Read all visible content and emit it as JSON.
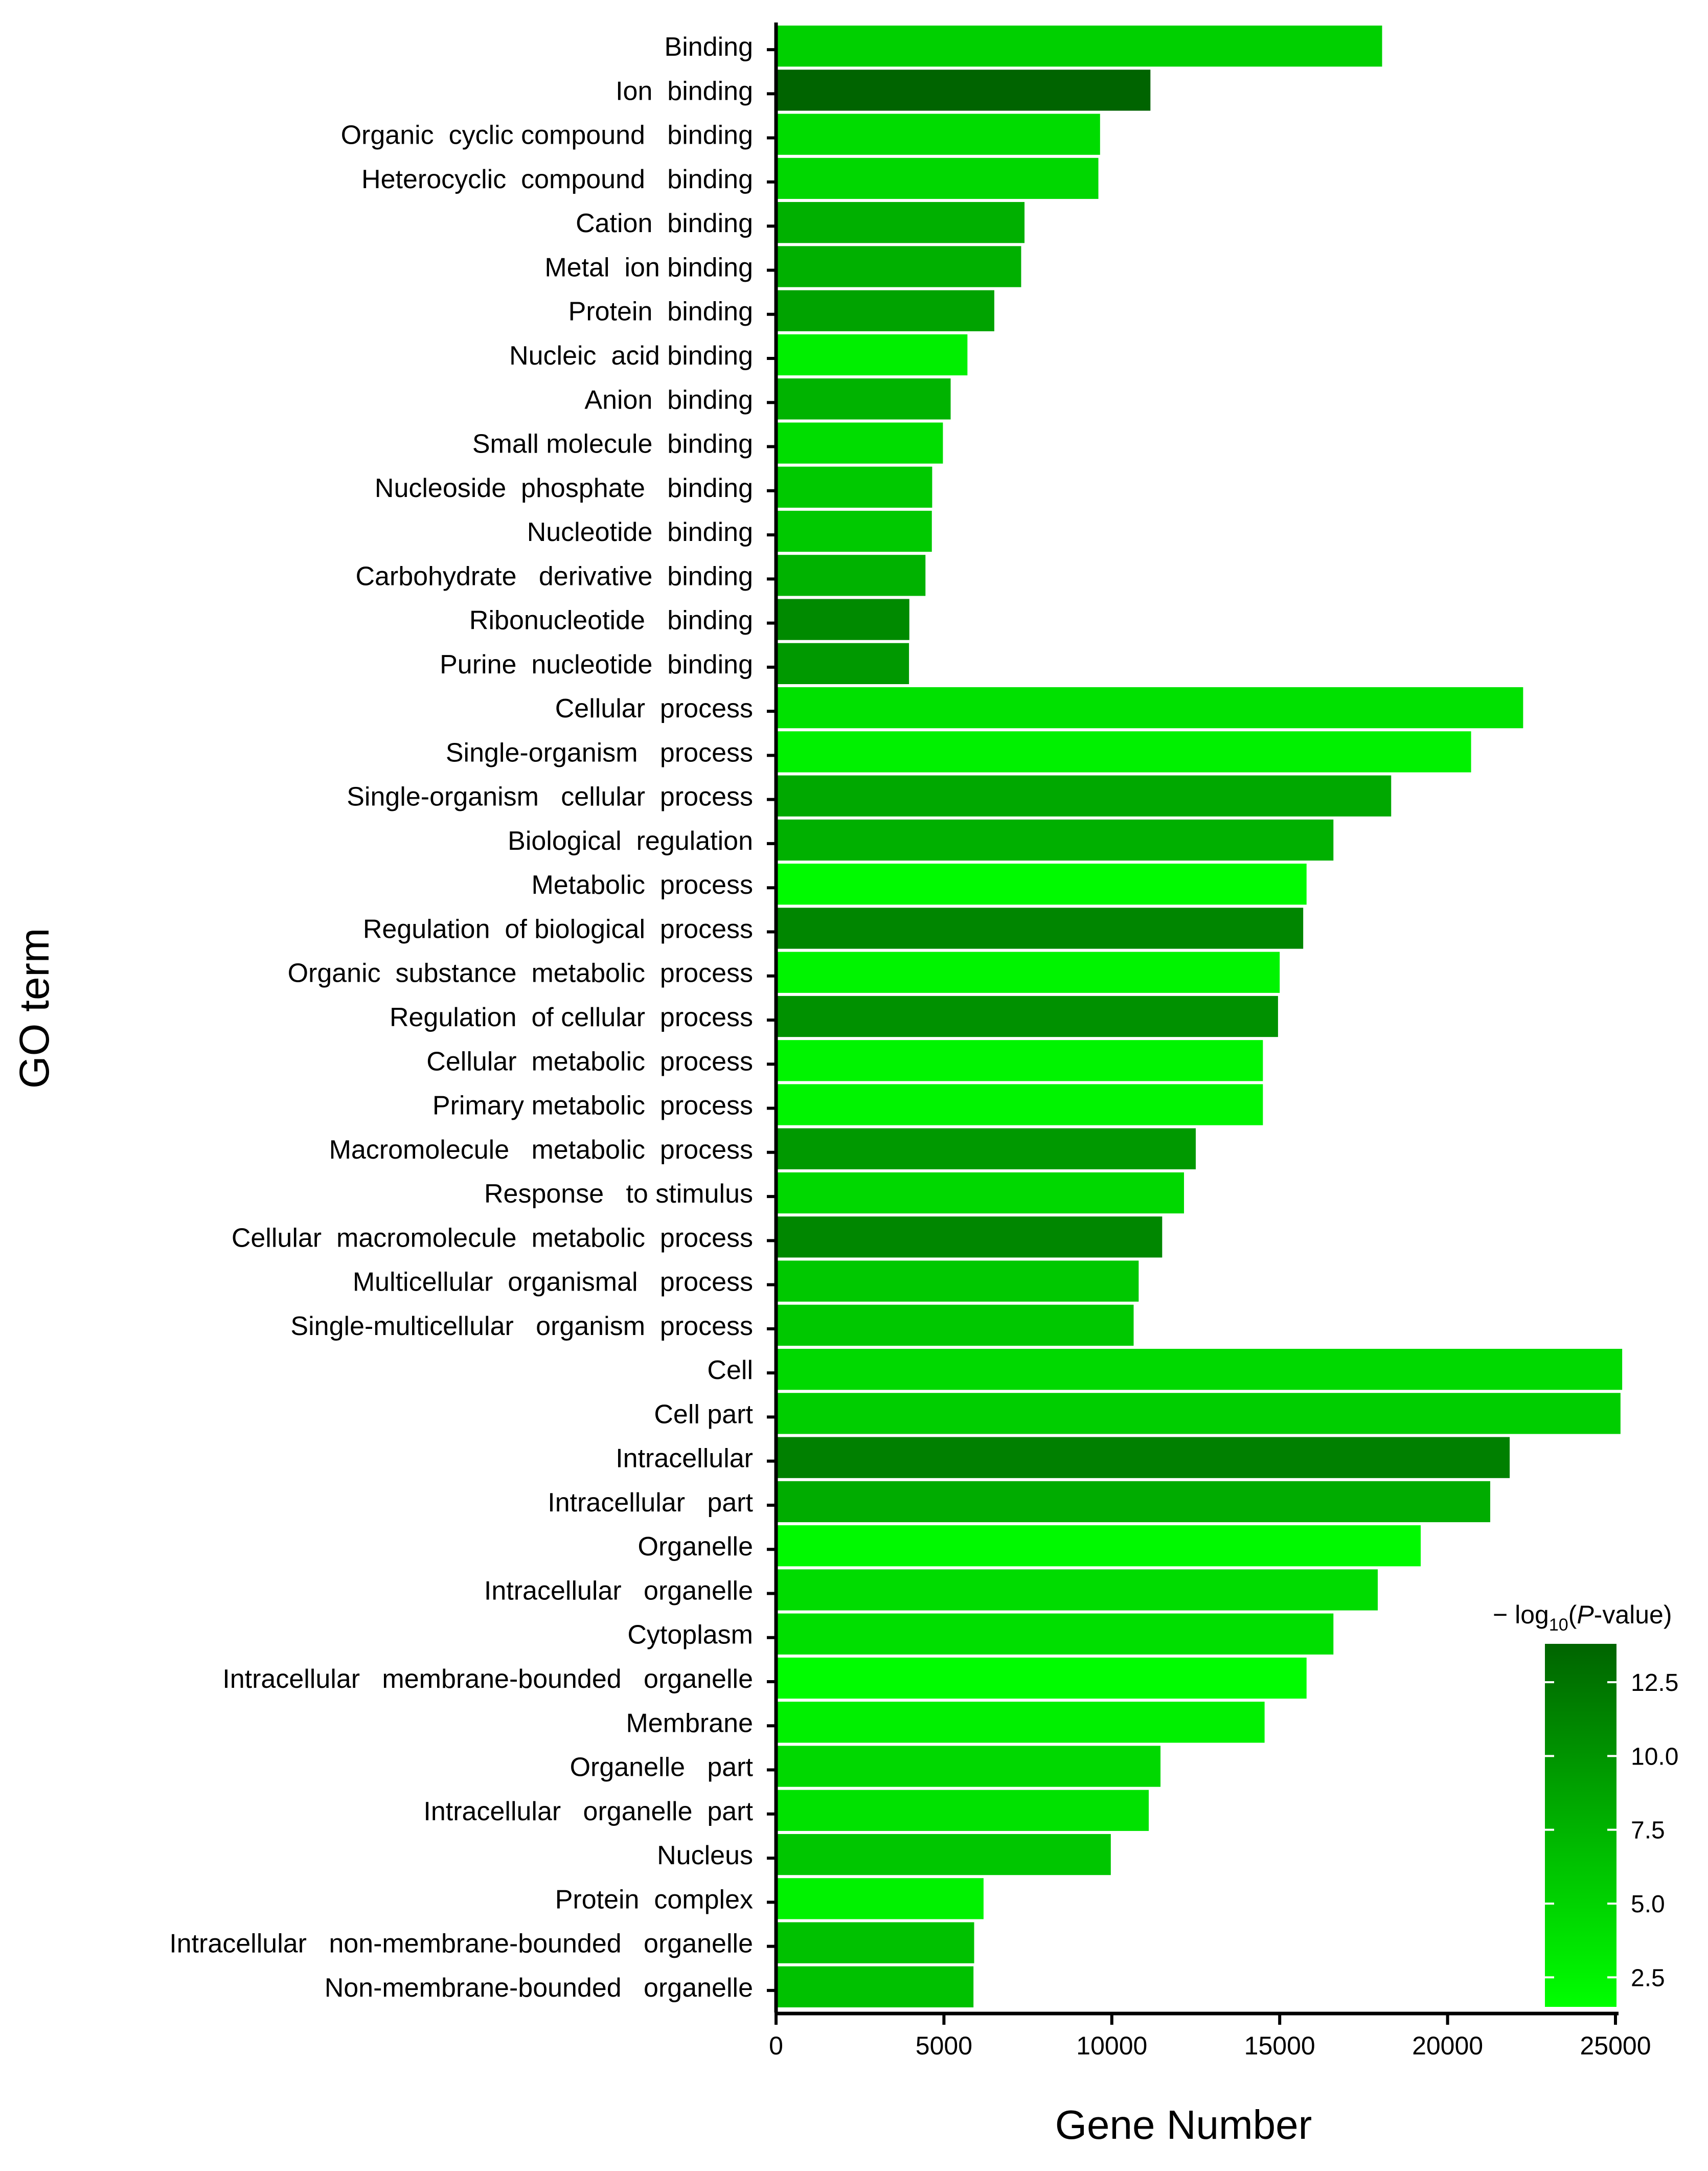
{
  "chart_data": {
    "type": "bar",
    "orientation": "horizontal",
    "xlabel": "Gene Number",
    "ylabel": "GO term",
    "xlim": [
      0,
      25000
    ],
    "xticks": [
      0,
      5000,
      10000,
      15000,
      20000,
      25000
    ],
    "colorbar": {
      "title_prefix": "− log",
      "title_sub": "10",
      "title_open": "(",
      "title_italic": "P",
      "title_rest": "-value)",
      "range": [
        1.5,
        13.8
      ],
      "ticks": [
        2.5,
        5.0,
        7.5,
        10.0,
        12.5
      ],
      "tick_labels": [
        "2.5",
        "5.0",
        "7.5",
        "10.0",
        "12.5"
      ],
      "color_low": "#00ff00",
      "color_high": "#006400"
    },
    "categories": [
      "Binding",
      "Ion  binding",
      "Organic  cyclic compound   binding",
      "Heterocyclic  compound   binding",
      "Cation  binding",
      "Metal  ion binding",
      "Protein  binding",
      "Nucleic  acid binding",
      "Anion  binding",
      "Small molecule  binding",
      "Nucleoside  phosphate   binding",
      "Nucleotide  binding",
      "Carbohydrate   derivative  binding",
      "Ribonucleotide   binding",
      "Purine  nucleotide  binding",
      "Cellular  process",
      "Single-organism   process",
      "Single-organism   cellular  process",
      "Biological  regulation",
      "Metabolic  process",
      "Regulation  of biological  process",
      "Organic  substance  metabolic  process",
      "Regulation  of cellular  process",
      "Cellular  metabolic  process",
      "Primary metabolic  process",
      "Macromolecule   metabolic  process",
      "Response   to stimulus",
      "Cellular  macromolecule  metabolic  process",
      "Multicellular  organismal   process",
      "Single-multicellular   organism  process",
      "Cell",
      "Cell part",
      "Intracellular",
      "Intracellular   part",
      "Organelle",
      "Intracellular   organelle",
      "Cytoplasm",
      "Intracellular   membrane-bounded   organelle",
      "Membrane",
      "Organelle   part",
      "Intracellular   organelle  part",
      "Nucleus",
      "Protein  complex",
      "Intracellular   non-membrane-bounded   organelle",
      "Non-membrane-bounded   organelle"
    ],
    "values": [
      18050,
      11150,
      9650,
      9600,
      7400,
      7300,
      6500,
      5700,
      5200,
      4970,
      4650,
      4640,
      4450,
      3970,
      3960,
      22250,
      20700,
      18320,
      16600,
      15800,
      15700,
      15000,
      14950,
      14500,
      14500,
      12500,
      12150,
      11500,
      10800,
      10650,
      25200,
      25150,
      21850,
      21270,
      19200,
      17920,
      16600,
      15800,
      14550,
      11450,
      11100,
      9970,
      6180,
      5900,
      5880
    ],
    "neg_log10_p": [
      5.2,
      13.8,
      4.3,
      4.7,
      7.8,
      7.8,
      8.8,
      2.8,
      7.5,
      4.2,
      5.8,
      5.8,
      7.6,
      10.8,
      9.6,
      3.9,
      2.6,
      8.4,
      7.8,
      1.9,
      11.1,
      2.4,
      10.2,
      2.4,
      2.4,
      9.6,
      4.6,
      11.0,
      5.9,
      5.9,
      4.5,
      5.4,
      11.6,
      8.1,
      2.0,
      4.3,
      4.0,
      1.7,
      2.7,
      4.6,
      3.8,
      6.0,
      2.5,
      6.4,
      6.4
    ]
  }
}
